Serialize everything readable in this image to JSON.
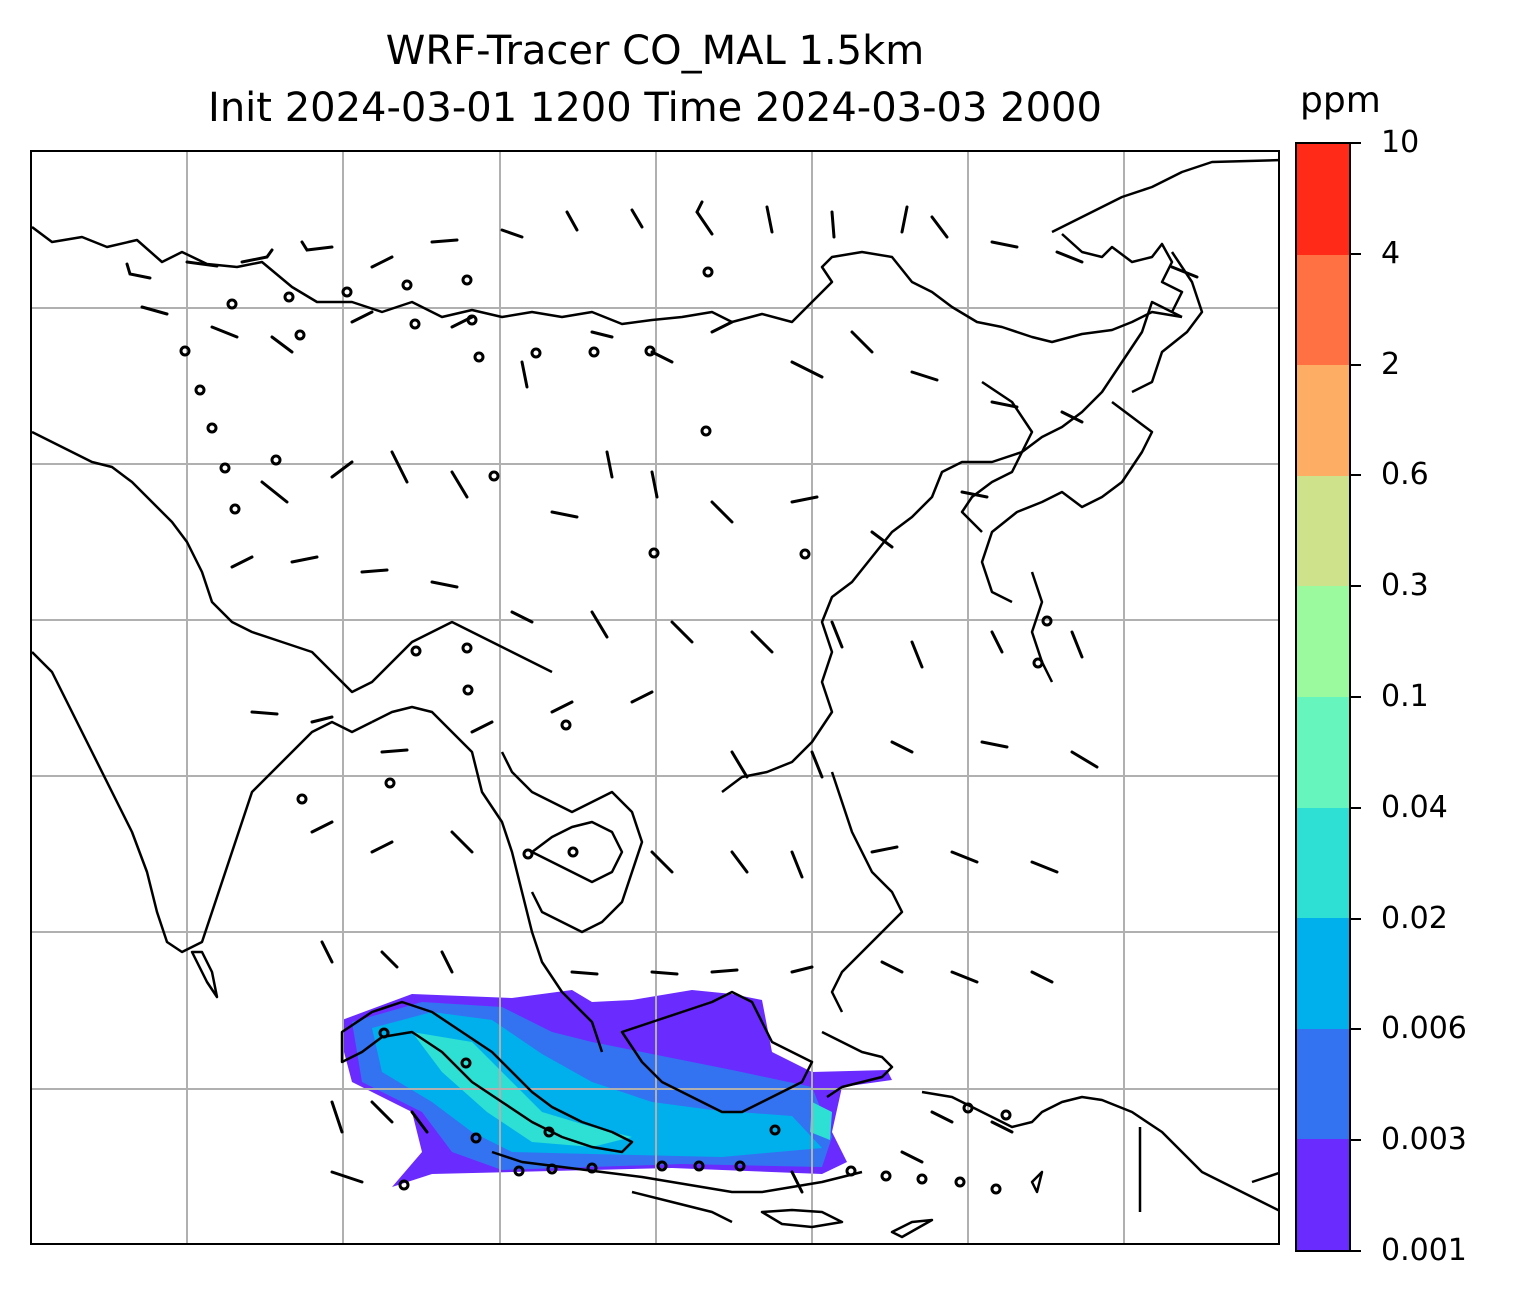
{
  "title": {
    "line1": "WRF-Tracer CO_MAL 1.5km",
    "line2": "Init 2024-03-01 1200 Time 2024-03-03 2000"
  },
  "colorbar": {
    "unit": "ppm",
    "levels": [
      "0.001",
      "0.003",
      "0.006",
      "0.02",
      "0.04",
      "0.1",
      "0.3",
      "0.6",
      "2",
      "4",
      "10"
    ],
    "colors": [
      "#6a2bff",
      "#3373f2",
      "#00b0ec",
      "#2ee0d3",
      "#66f5bd",
      "#9bfa9e",
      "#cde28a",
      "#feae64",
      "#ff7043",
      "#ff2a17"
    ]
  },
  "map": {
    "gridlines": true,
    "gridline_color": "#b0b0b0",
    "coastline_color": "#000000",
    "wind_barb_color": "#000000"
  }
}
